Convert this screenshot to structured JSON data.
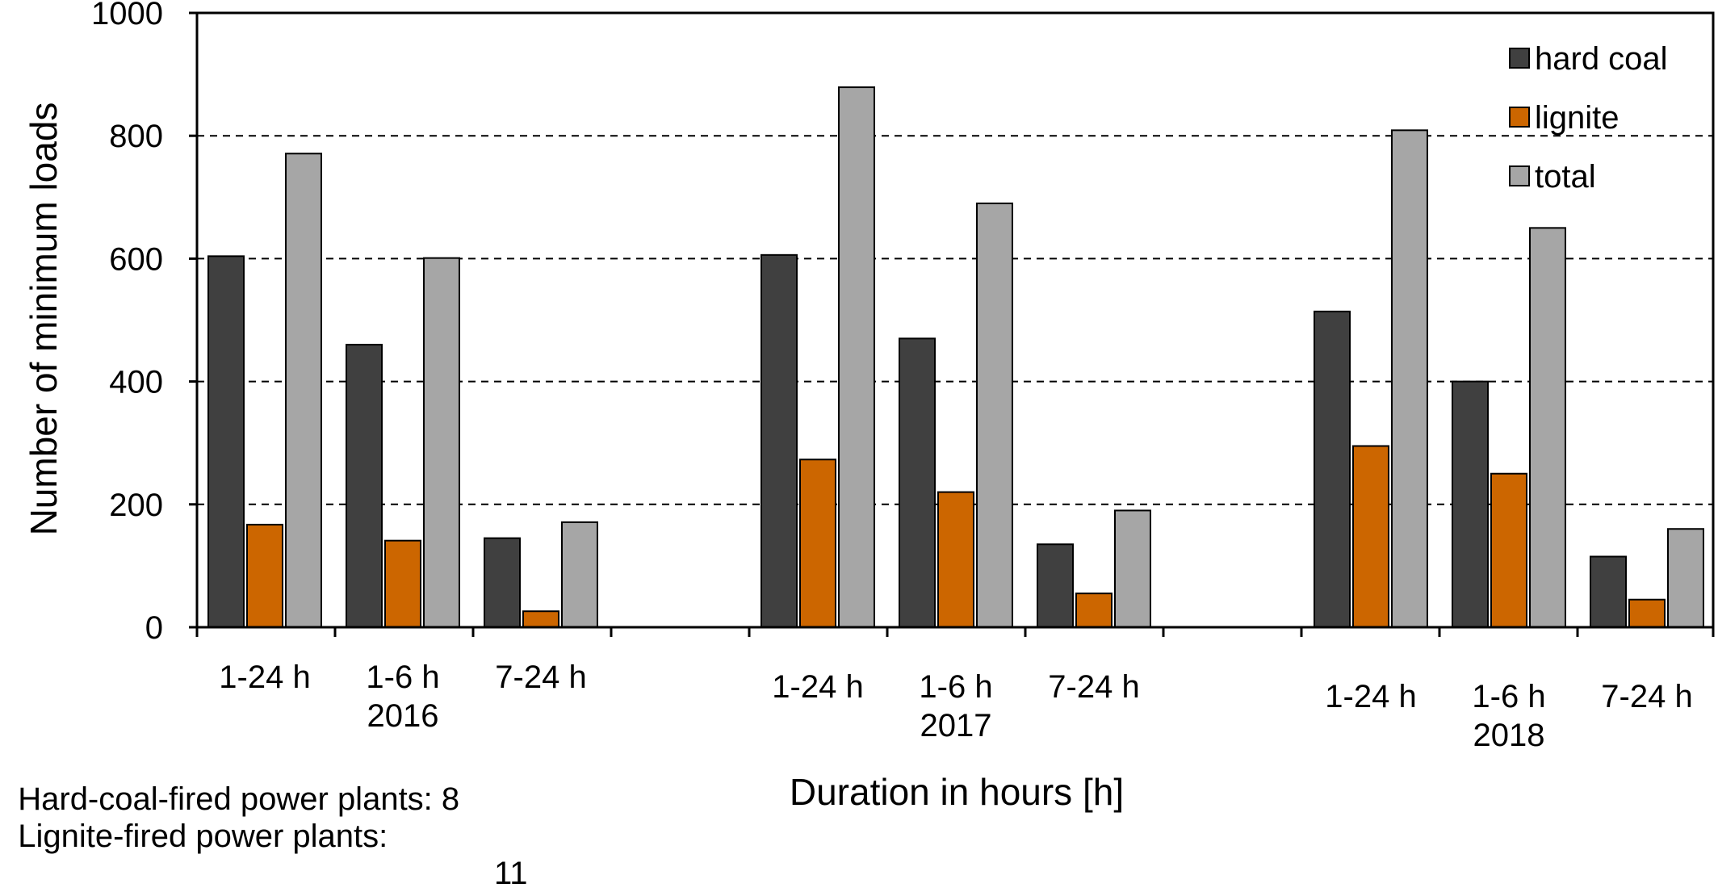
{
  "chart_data": {
    "type": "bar",
    "groups": [
      {
        "year": "2016",
        "categories": [
          "1-24 h",
          "1-6 h",
          "7-24 h"
        ]
      },
      {
        "year": "2017",
        "categories": [
          "1-24 h",
          "1-6 h",
          "7-24 h"
        ]
      },
      {
        "year": "2018",
        "categories": [
          "1-24 h",
          "1-6 h",
          "7-24 h"
        ]
      }
    ],
    "series": [
      {
        "name": "hard coal",
        "color": "#404040",
        "values": [
          604,
          460,
          145,
          606,
          470,
          135,
          514,
          400,
          115
        ]
      },
      {
        "name": "lignite",
        "color": "#cc6600",
        "values": [
          167,
          141,
          26,
          273,
          220,
          55,
          295,
          250,
          45
        ]
      },
      {
        "name": "total",
        "color": "#a6a6a6",
        "values": [
          771,
          601,
          171,
          879,
          690,
          190,
          809,
          650,
          160
        ]
      }
    ],
    "ylabel": "Number of minimum loads",
    "xlabel": "Duration in hours [h]",
    "ylim": [
      0,
      1000
    ],
    "yticks": [
      0,
      200,
      400,
      600,
      800,
      1000
    ],
    "grid": "dashed horizontal",
    "legend_position": "top-right"
  },
  "notes": [
    {
      "label": "Hard-coal-fired power plants: 8",
      "value": ""
    },
    {
      "label": "Lignite-fired power plants:",
      "value": "11"
    }
  ]
}
